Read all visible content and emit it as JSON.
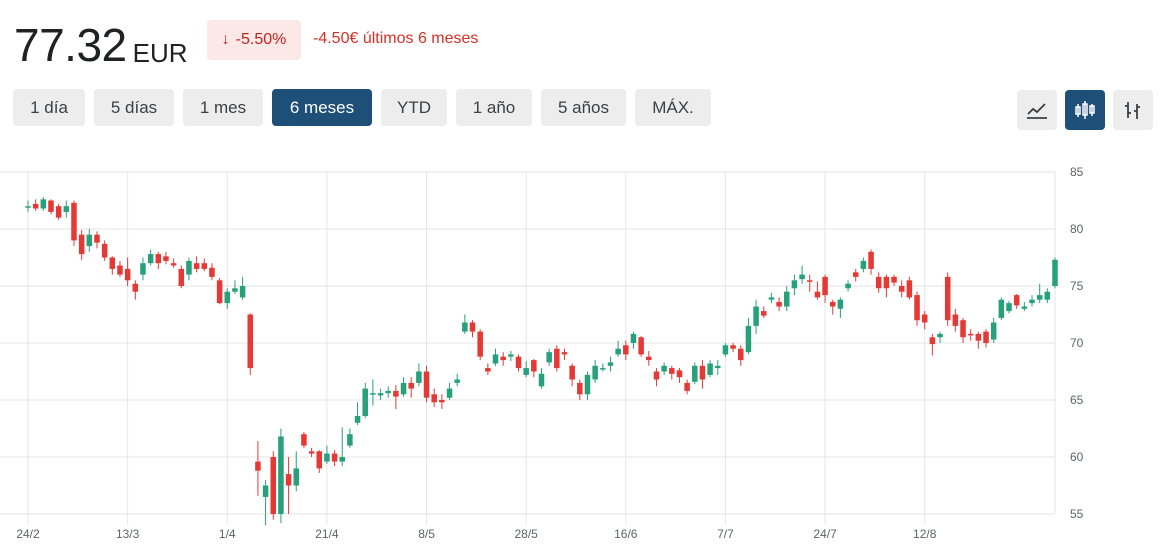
{
  "quote": {
    "price": "77.32",
    "currency": "EUR",
    "change_arrow": "↓",
    "change_percent": "-5.50%",
    "change_text": "-4.50€ últimos 6 meses"
  },
  "ranges": [
    {
      "label": "1 día",
      "active": false
    },
    {
      "label": "5 días",
      "active": false
    },
    {
      "label": "1 mes",
      "active": false
    },
    {
      "label": "6 meses",
      "active": true
    },
    {
      "label": "YTD",
      "active": false
    },
    {
      "label": "1 año",
      "active": false
    },
    {
      "label": "5 años",
      "active": false
    },
    {
      "label": "MÁX.",
      "active": false
    }
  ],
  "view_buttons": [
    {
      "icon": "line-chart-icon",
      "active": false
    },
    {
      "icon": "candlestick-icon",
      "active": true
    },
    {
      "icon": "ohlc-bars-icon",
      "active": false
    }
  ],
  "colors": {
    "up": "#26a17b",
    "down": "#e53935",
    "grid": "#e6e6e6",
    "active": "#1d4f78"
  },
  "chart_data": {
    "type": "candlestick",
    "title": "",
    "xlabel": "",
    "ylabel": "",
    "ylim": [
      55,
      85
    ],
    "yticks": [
      55,
      60,
      65,
      70,
      75,
      80,
      85
    ],
    "grid": true,
    "y_axis_side": "right",
    "x_tick_labels": [
      "24/2",
      "13/3",
      "1/4",
      "21/4",
      "8/5",
      "28/5",
      "16/6",
      "7/7",
      "24/7",
      "12/8"
    ],
    "x_tick_index": [
      0,
      13,
      26,
      39,
      52,
      65,
      78,
      91,
      104,
      117
    ],
    "ohlc": [
      [
        82.0,
        82.5,
        81.5,
        82.0
      ],
      [
        82.2,
        82.6,
        81.6,
        81.8
      ],
      [
        81.8,
        82.8,
        81.6,
        82.6
      ],
      [
        82.5,
        82.6,
        81.3,
        81.5
      ],
      [
        82.0,
        82.2,
        80.8,
        81.0
      ],
      [
        81.5,
        82.5,
        81.0,
        82.0
      ],
      [
        82.3,
        82.5,
        78.5,
        79.0
      ],
      [
        79.5,
        79.9,
        77.3,
        77.8
      ],
      [
        78.5,
        80.0,
        78.0,
        79.5
      ],
      [
        79.5,
        79.8,
        78.3,
        78.8
      ],
      [
        78.7,
        79.0,
        77.2,
        77.5
      ],
      [
        77.5,
        77.6,
        76.0,
        76.5
      ],
      [
        76.8,
        77.2,
        75.8,
        76.0
      ],
      [
        76.5,
        77.5,
        75.0,
        75.5
      ],
      [
        75.2,
        75.5,
        73.8,
        74.5
      ],
      [
        76.0,
        77.5,
        75.5,
        77.0
      ],
      [
        77.0,
        78.2,
        76.8,
        77.8
      ],
      [
        77.8,
        78.0,
        76.5,
        77.0
      ],
      [
        77.6,
        78.0,
        76.9,
        77.2
      ],
      [
        77.0,
        77.4,
        76.6,
        76.8
      ],
      [
        76.5,
        76.8,
        74.8,
        75.0
      ],
      [
        76.0,
        77.5,
        75.5,
        77.2
      ],
      [
        77.0,
        77.6,
        76.2,
        76.5
      ],
      [
        77.0,
        77.4,
        76.3,
        76.5
      ],
      [
        76.6,
        77.0,
        75.5,
        75.8
      ],
      [
        75.5,
        75.7,
        73.4,
        73.5
      ],
      [
        73.5,
        74.8,
        73.0,
        74.5
      ],
      [
        74.5,
        75.5,
        74.3,
        74.8
      ],
      [
        74.0,
        75.8,
        73.8,
        75.0
      ],
      [
        72.5,
        72.6,
        67.2,
        67.8
      ],
      [
        59.6,
        61.4,
        56.6,
        58.8
      ],
      [
        56.5,
        58.0,
        54.0,
        57.5
      ],
      [
        60.0,
        60.5,
        54.5,
        55.0
      ],
      [
        55.0,
        62.5,
        54.2,
        61.8
      ],
      [
        58.5,
        60.0,
        55.0,
        57.5
      ],
      [
        57.5,
        60.5,
        57.0,
        59.0
      ],
      [
        62.0,
        62.2,
        60.8,
        61.0
      ],
      [
        60.5,
        60.8,
        60.0,
        60.3
      ],
      [
        60.5,
        60.6,
        58.6,
        59.0
      ],
      [
        59.6,
        61.0,
        59.4,
        60.3
      ],
      [
        60.3,
        60.6,
        59.2,
        59.6
      ],
      [
        59.6,
        62.6,
        59.2,
        60.0
      ],
      [
        61.0,
        62.5,
        60.8,
        62.0
      ],
      [
        63.0,
        64.8,
        62.8,
        63.6
      ],
      [
        63.6,
        66.5,
        63.4,
        66.0
      ],
      [
        65.5,
        66.8,
        64.5,
        65.6
      ],
      [
        65.4,
        66.0,
        65.0,
        65.6
      ],
      [
        65.6,
        66.2,
        65.2,
        65.8
      ],
      [
        65.8,
        66.3,
        64.2,
        65.3
      ],
      [
        65.5,
        67.0,
        65.3,
        66.5
      ],
      [
        66.5,
        67.0,
        65.2,
        66.0
      ],
      [
        66.5,
        68.2,
        66.2,
        67.5
      ],
      [
        67.5,
        68.0,
        64.8,
        65.2
      ],
      [
        65.5,
        66.0,
        64.4,
        64.8
      ],
      [
        65.0,
        65.5,
        64.2,
        64.8
      ],
      [
        65.2,
        66.5,
        65.0,
        66.0
      ],
      [
        66.5,
        67.3,
        66.2,
        66.8
      ],
      [
        71.0,
        72.5,
        70.8,
        71.8
      ],
      [
        71.8,
        72.0,
        70.5,
        71.0
      ],
      [
        71.0,
        71.2,
        68.5,
        68.8
      ],
      [
        67.8,
        68.2,
        67.2,
        67.5
      ],
      [
        68.2,
        69.5,
        68.0,
        69.0
      ],
      [
        68.8,
        69.2,
        68.0,
        68.5
      ],
      [
        68.8,
        69.3,
        68.4,
        69.0
      ],
      [
        68.8,
        69.0,
        67.5,
        67.8
      ],
      [
        67.2,
        68.4,
        67.0,
        67.8
      ],
      [
        68.5,
        68.6,
        67.0,
        67.5
      ],
      [
        66.2,
        67.8,
        66.0,
        67.3
      ],
      [
        68.3,
        69.5,
        68.0,
        69.2
      ],
      [
        69.5,
        69.8,
        67.5,
        67.8
      ],
      [
        69.2,
        69.5,
        68.5,
        69.0
      ],
      [
        68.0,
        68.2,
        66.2,
        66.8
      ],
      [
        66.5,
        66.8,
        65.0,
        65.5
      ],
      [
        65.5,
        67.5,
        65.0,
        67.2
      ],
      [
        66.8,
        68.5,
        66.5,
        68.0
      ],
      [
        67.8,
        68.2,
        67.5,
        67.8
      ],
      [
        68.0,
        68.8,
        67.5,
        68.3
      ],
      [
        69.0,
        70.2,
        68.8,
        69.5
      ],
      [
        69.8,
        70.2,
        68.5,
        69.0
      ],
      [
        70.0,
        71.0,
        69.5,
        70.8
      ],
      [
        70.5,
        70.6,
        68.8,
        69.0
      ],
      [
        68.8,
        69.3,
        68.0,
        68.5
      ],
      [
        67.5,
        67.8,
        66.2,
        66.8
      ],
      [
        67.5,
        68.3,
        67.2,
        68.0
      ],
      [
        67.8,
        68.0,
        66.8,
        67.3
      ],
      [
        67.6,
        67.8,
        66.5,
        67.0
      ],
      [
        66.5,
        66.8,
        65.5,
        65.8
      ],
      [
        66.6,
        68.3,
        66.4,
        68.0
      ],
      [
        68.0,
        68.5,
        66.0,
        66.8
      ],
      [
        67.2,
        68.5,
        67.0,
        68.2
      ],
      [
        67.8,
        68.5,
        67.2,
        68.0
      ],
      [
        69.0,
        70.0,
        68.8,
        69.8
      ],
      [
        69.8,
        70.0,
        69.2,
        69.5
      ],
      [
        69.5,
        69.8,
        68.0,
        68.5
      ],
      [
        69.2,
        72.2,
        69.0,
        71.5
      ],
      [
        71.5,
        73.8,
        70.8,
        73.2
      ],
      [
        72.8,
        73.2,
        72.2,
        72.4
      ],
      [
        73.8,
        74.4,
        73.5,
        74.0
      ],
      [
        73.6,
        74.0,
        72.8,
        73.2
      ],
      [
        73.2,
        75.0,
        72.8,
        74.5
      ],
      [
        74.8,
        76.0,
        74.2,
        75.5
      ],
      [
        75.6,
        76.8,
        75.2,
        76.0
      ],
      [
        75.5,
        76.0,
        74.5,
        75.4
      ],
      [
        74.5,
        75.4,
        73.8,
        74.0
      ],
      [
        75.8,
        76.0,
        73.5,
        74.2
      ],
      [
        73.6,
        73.8,
        72.5,
        73.2
      ],
      [
        73.0,
        74.0,
        72.2,
        73.8
      ],
      [
        74.8,
        75.5,
        74.5,
        75.2
      ],
      [
        76.2,
        76.5,
        75.4,
        75.8
      ],
      [
        76.5,
        77.5,
        76.2,
        77.2
      ],
      [
        78.0,
        78.2,
        76.0,
        76.5
      ],
      [
        75.8,
        76.2,
        74.4,
        74.8
      ],
      [
        75.8,
        76.0,
        74.0,
        74.8
      ],
      [
        75.8,
        76.0,
        75.0,
        75.3
      ],
      [
        75.0,
        75.5,
        74.0,
        74.5
      ],
      [
        75.5,
        75.8,
        73.8,
        74.0
      ],
      [
        74.2,
        74.5,
        71.5,
        72.0
      ],
      [
        72.5,
        72.8,
        71.2,
        71.8
      ],
      [
        70.5,
        70.8,
        68.9,
        69.9
      ],
      [
        70.5,
        71.0,
        70.0,
        70.8
      ],
      [
        75.8,
        76.2,
        71.5,
        72.0
      ],
      [
        72.5,
        73.0,
        71.0,
        71.5
      ],
      [
        72.0,
        72.2,
        70.0,
        70.5
      ],
      [
        70.8,
        71.2,
        70.2,
        70.7
      ],
      [
        70.8,
        71.0,
        69.5,
        70.2
      ],
      [
        71.0,
        71.2,
        69.6,
        70.0
      ],
      [
        70.3,
        72.2,
        70.0,
        71.8
      ],
      [
        72.2,
        74.0,
        72.0,
        73.8
      ],
      [
        72.8,
        73.7,
        72.6,
        73.5
      ],
      [
        74.2,
        74.3,
        73.0,
        73.3
      ],
      [
        73.0,
        73.6,
        72.8,
        73.2
      ],
      [
        73.5,
        74.2,
        73.2,
        73.8
      ],
      [
        73.8,
        75.2,
        73.5,
        74.2
      ],
      [
        73.8,
        74.8,
        73.5,
        74.5
      ],
      [
        75.0,
        77.5,
        74.8,
        77.3
      ]
    ]
  }
}
